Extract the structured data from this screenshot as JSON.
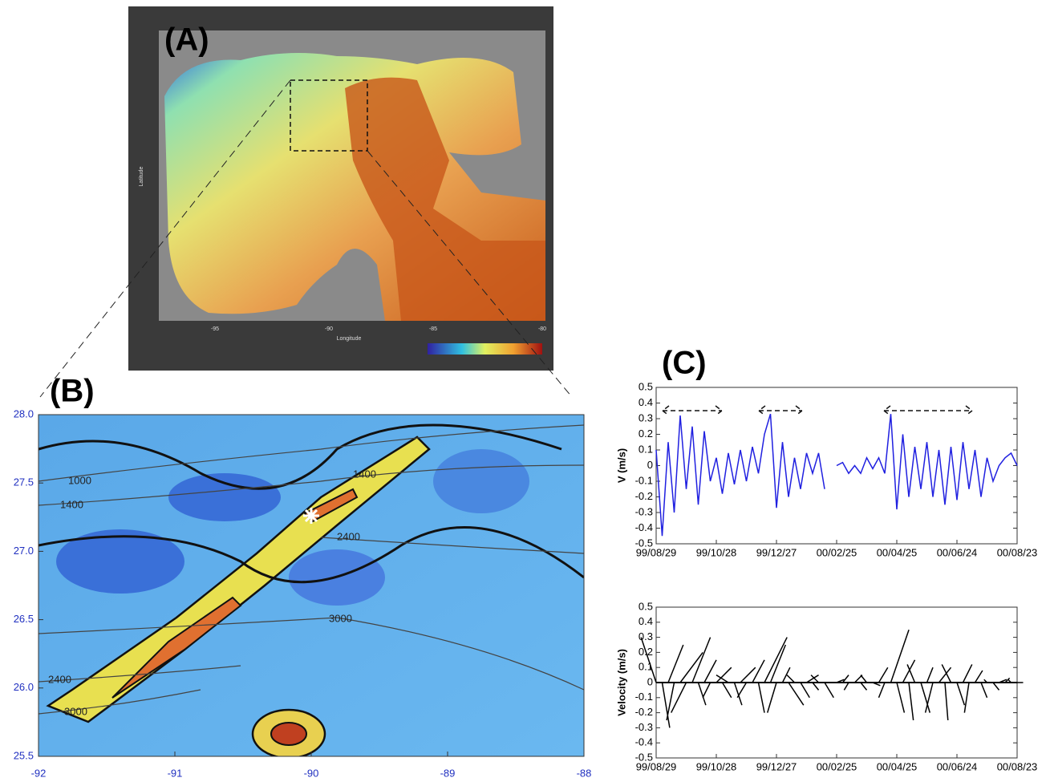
{
  "panel_a": {
    "label": "(A)",
    "y_axis_title": "Latitude",
    "x_axis_title": "Longitude",
    "map_ticks": [
      "-95",
      "-90",
      "-85",
      "-80"
    ]
  },
  "panel_b": {
    "label": "(B)",
    "xlim": [
      -92,
      -88
    ],
    "xticks": [
      -92,
      -91,
      -90,
      -89,
      -88
    ],
    "ylim": [
      25.5,
      28
    ],
    "yticks": [
      25.5,
      {
        "value": 26,
        "label": "26.0"
      },
      26.5,
      {
        "value": 27,
        "label": "27.0"
      },
      27.5,
      {
        "value": 28,
        "label": "28.0"
      }
    ],
    "contour_labels": [
      "1000",
      "1400",
      "1400",
      "2400",
      "3000",
      "2400",
      "3000"
    ]
  },
  "panel_c": {
    "label": "(C)"
  },
  "chart_data": [
    {
      "type": "line",
      "y_axis_title": "V (m/s)",
      "color": "#2020e0",
      "x": [
        "99/08/29",
        "99/09/04",
        "99/09/10",
        "99/09/16",
        "99/09/22",
        "99/09/28",
        "99/10/04",
        "99/10/10",
        "99/10/16",
        "99/10/22",
        "99/10/28",
        "99/11/03",
        "99/11/09",
        "99/11/15",
        "99/11/21",
        "99/11/27",
        "99/12/03",
        "99/12/09",
        "99/12/15",
        "99/12/21",
        "99/12/27",
        "00/01/02",
        "00/01/08",
        "00/01/14",
        "00/01/20",
        "00/01/26",
        "00/02/01",
        "00/02/07",
        "00/02/13",
        "00/02/19",
        "00/02/25",
        "00/03/02",
        "00/03/08",
        "00/03/14",
        "00/03/20",
        "00/03/26",
        "00/04/01",
        "00/04/07",
        "00/04/13",
        "00/04/19",
        "00/04/25",
        "00/05/01",
        "00/05/07",
        "00/05/13",
        "00/05/19",
        "00/05/25",
        "00/05/31",
        "00/06/06",
        "00/06/12",
        "00/06/18",
        "00/06/24",
        "00/06/30",
        "00/07/06",
        "00/07/12",
        "00/07/18",
        "00/07/24",
        "00/07/30",
        "00/08/05",
        "00/08/11",
        "00/08/17",
        "00/08/23"
      ],
      "values": [
        0.1,
        -0.45,
        0.15,
        -0.3,
        0.32,
        -0.15,
        0.25,
        -0.25,
        0.22,
        -0.1,
        0.05,
        -0.18,
        0.08,
        -0.12,
        0.1,
        -0.1,
        0.12,
        -0.05,
        0.2,
        0.33,
        -0.27,
        0.15,
        -0.2,
        0.05,
        -0.15,
        0.08,
        -0.05,
        0.08,
        -0.15,
        null,
        0.0,
        0.02,
        -0.05,
        0.0,
        -0.05,
        0.05,
        -0.02,
        0.05,
        -0.05,
        0.33,
        -0.28,
        0.2,
        -0.2,
        0.12,
        -0.15,
        0.15,
        -0.2,
        0.1,
        -0.25,
        0.12,
        -0.22,
        0.15,
        -0.15,
        0.1,
        -0.2,
        0.05,
        -0.1,
        0.0,
        0.05,
        0.08,
        0.0
      ],
      "xlim": [
        "99/08/29",
        "00/08/23"
      ],
      "xticks": [
        "99/08/29",
        "99/10/28",
        "99/12/27",
        "00/02/25",
        "00/04/25",
        "00/06/24",
        "00/08/23"
      ],
      "ylim": [
        -0.5,
        0.5
      ],
      "yticks": [
        0.5,
        0.4,
        0.3,
        0.2,
        0.1,
        0,
        -0.1,
        -0.2,
        -0.3,
        -0.4,
        -0.5
      ]
    },
    {
      "type": "stick",
      "y_axis_title": "Velocity (m/s)",
      "color": "#000000",
      "x": [
        "99/08/29",
        "99/09/04",
        "99/09/10",
        "99/09/16",
        "99/09/22",
        "99/09/28",
        "99/10/04",
        "99/10/10",
        "99/10/16",
        "99/10/22",
        "99/10/28",
        "99/11/03",
        "99/11/09",
        "99/11/15",
        "99/11/21",
        "99/11/27",
        "99/12/03",
        "99/12/09",
        "99/12/15",
        "99/12/21",
        "99/12/27",
        "00/01/02",
        "00/01/08",
        "00/01/14",
        "00/01/20",
        "00/01/26",
        "00/02/01",
        "00/02/07",
        "00/02/13",
        "00/02/19",
        "00/02/25",
        "00/03/02",
        "00/03/08",
        "00/03/14",
        "00/03/20",
        "00/03/26",
        "00/04/01",
        "00/04/07",
        "00/04/13",
        "00/04/19",
        "00/04/25",
        "00/05/01",
        "00/05/07",
        "00/05/13",
        "00/05/19",
        "00/05/25",
        "00/05/31",
        "00/06/06",
        "00/06/12",
        "00/06/18",
        "00/06/24",
        "00/06/30",
        "00/07/06",
        "00/07/12",
        "00/07/18",
        "00/07/24",
        "00/07/30",
        "00/08/05",
        "00/08/11",
        "00/08/17",
        "00/08/23"
      ],
      "u": [
        -0.1,
        0.05,
        0.1,
        -0.05,
        0.15,
        -0.1,
        0.12,
        0.05,
        0.08,
        -0.05,
        0.1,
        0.06,
        -0.08,
        0.05,
        0.1,
        -0.06,
        0.08,
        0.04,
        0.15,
        0.1,
        -0.06,
        0.05,
        0.1,
        -0.05,
        0.06,
        0.08,
        0.04,
        -0.05,
        0.06,
        0.05,
        0.05,
        0.04,
        -0.03,
        0.05,
        0.04,
        -0.04,
        0.05,
        0.06,
        -0.04,
        0.12,
        0.05,
        0.08,
        0.03,
        -0.05,
        0.06,
        0.04,
        -0.05,
        0.08,
        0.02,
        -0.06,
        0.05,
        0.06,
        -0.03,
        0.05,
        0.04,
        -0.02,
        0.04,
        0.05,
        0.03,
        -0.02,
        0.04
      ],
      "v": [
        0.3,
        -0.3,
        0.25,
        -0.25,
        0.2,
        -0.2,
        0.3,
        -0.15,
        0.15,
        -0.1,
        0.1,
        -0.1,
        0.05,
        -0.15,
        0.1,
        -0.1,
        0.15,
        -0.2,
        0.3,
        0.25,
        -0.2,
        0.1,
        -0.15,
        0.05,
        -0.1,
        0.05,
        -0.05,
        0.05,
        -0.1,
        0,
        0.02,
        0.05,
        -0.05,
        0.05,
        -0.05,
        0.05,
        -0.02,
        0.1,
        -0.1,
        0.35,
        -0.2,
        0.15,
        -0.25,
        0.12,
        -0.2,
        0.1,
        -0.2,
        0.1,
        -0.25,
        0.12,
        -0.15,
        0.12,
        -0.2,
        0.08,
        -0.1,
        0.02,
        -0.05,
        0.02,
        0.03,
        0.02,
        0.0
      ],
      "xlim": [
        "99/08/29",
        "00/08/23"
      ],
      "xticks": [
        "99/08/29",
        "99/10/28",
        "99/12/27",
        "00/02/25",
        "00/04/25",
        "00/06/24",
        "00/08/23"
      ],
      "ylim": [
        -0.5,
        0.5
      ],
      "yticks": [
        0.5,
        0.4,
        0.3,
        0.2,
        0.1,
        0,
        -0.1,
        -0.2,
        -0.3,
        -0.4,
        -0.5
      ]
    }
  ]
}
